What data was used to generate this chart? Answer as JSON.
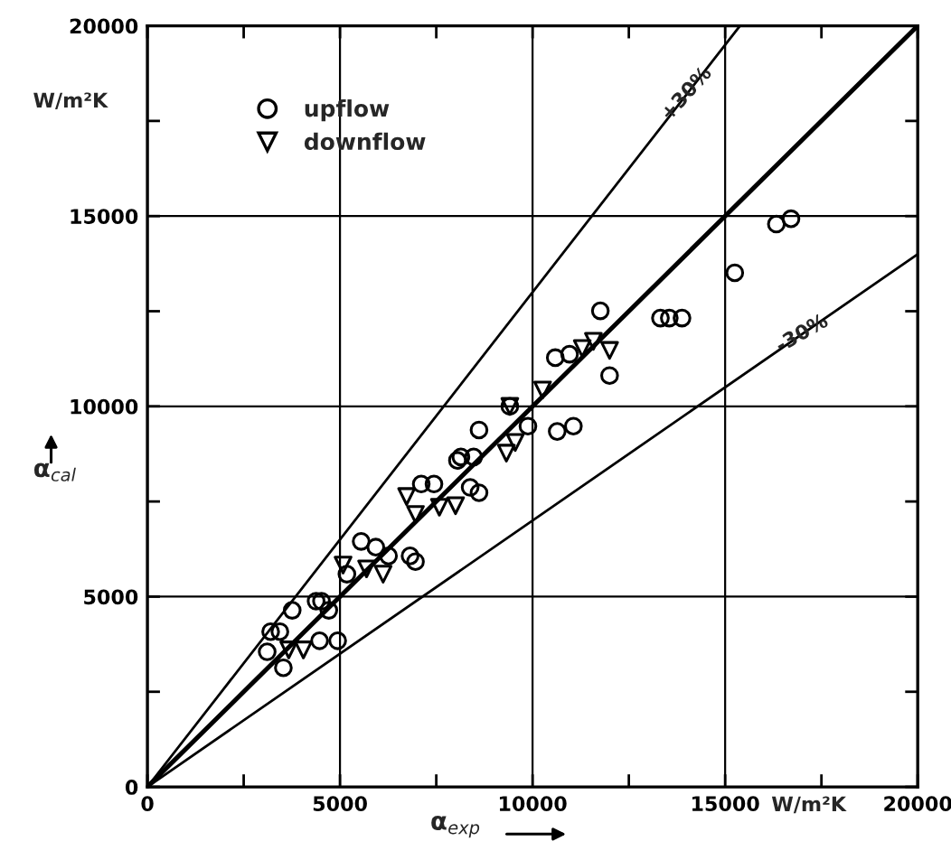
{
  "chart_data": {
    "type": "scatter",
    "xlabel": "α$_{exp}$",
    "ylabel": "α$_{cal}$",
    "xlim": [
      0,
      20000
    ],
    "ylim": [
      0,
      20000
    ],
    "xticks": [
      0,
      {
        "value": 2500,
        "label": null
      },
      5000,
      {
        "value": 7500,
        "label": null
      },
      10000,
      {
        "value": 12500,
        "label": null
      },
      15000,
      {
        "value": 17500,
        "label": null
      },
      20000
    ],
    "yticks": [
      0,
      {
        "value": 2500,
        "label": null
      },
      5000,
      {
        "value": 7500,
        "label": null
      },
      10000,
      {
        "value": 12500,
        "label": null
      },
      15000,
      {
        "value": 17500,
        "label": null
      },
      20000
    ],
    "grid": true,
    "legend": "top left",
    "annotations": [
      "W/m²K",
      "W/m²K",
      {
        "text": "+30%",
        "x": 14000,
        "y": 18200
      },
      {
        "text": "-30%",
        "x": 17000,
        "y": 11900
      }
    ],
    "series": [
      {
        "name": "upflow",
        "marker": "circle",
        "color": "#000000",
        "x": [
          3760,
          3200,
          3440,
          3110,
          3530,
          4380,
          4520,
          4710,
          4470,
          4940,
          5550,
          5930,
          6260,
          6820,
          6960,
          7110,
          7440,
          8050,
          8380,
          8140,
          8470,
          8610,
          8610,
          9410,
          9880,
          10640,
          11060,
          10590,
          10960,
          11760,
          12000,
          13320,
          13550,
          13880,
          15250,
          16330,
          16710,
          5180
        ],
        "values": [
          4640,
          4080,
          4080,
          3550,
          3130,
          4880,
          4880,
          4640,
          3840,
          3840,
          6450,
          6300,
          6070,
          6070,
          5920,
          7960,
          7960,
          8580,
          7870,
          8670,
          8670,
          7730,
          9380,
          10000,
          9480,
          9340,
          9480,
          11280,
          11370,
          12510,
          10810,
          12320,
          12320,
          12320,
          13510,
          14790,
          14930,
          5590
        ]
      },
      {
        "name": "downflow",
        "marker": "triangle",
        "color": "#000000",
        "x": [
          5080,
          5690,
          6120,
          6730,
          7580,
          8000,
          4050,
          3670,
          11580,
          12000,
          11290,
          10260,
          9320,
          9550,
          6960,
          9410
        ],
        "values": [
          5830,
          5730,
          5590,
          7630,
          7350,
          7390,
          3600,
          3600,
          11710,
          11470,
          11520,
          10430,
          8770,
          9050,
          7160,
          10000
        ]
      },
      {
        "type": "line",
        "color": "#000000",
        "x": [
          0,
          20000
        ],
        "values": [
          0,
          20000
        ]
      },
      {
        "type": "line",
        "color": "#000000",
        "x": [
          0,
          15385
        ],
        "values": [
          0,
          20000
        ]
      },
      {
        "type": "line",
        "color": "#000000",
        "x": [
          0,
          20000
        ],
        "values": [
          0,
          14000
        ]
      }
    ]
  }
}
